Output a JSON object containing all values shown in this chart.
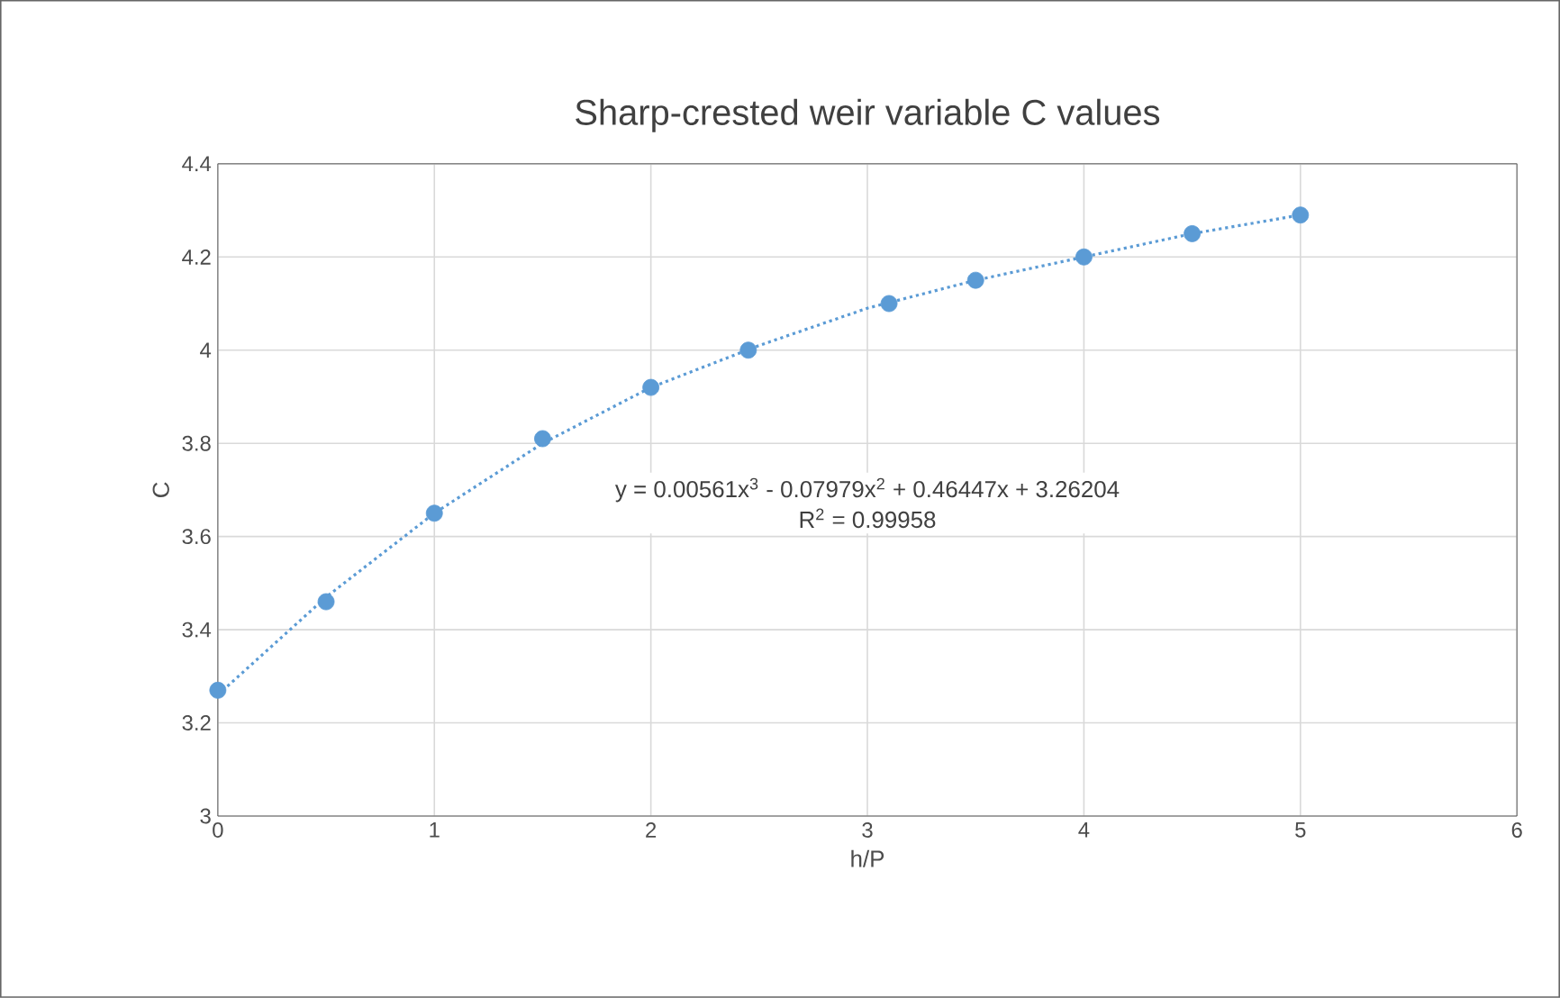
{
  "chart_data": {
    "type": "scatter",
    "title": "Sharp-crested weir variable C values",
    "xlabel": "h/P",
    "ylabel": "C",
    "xlim": [
      0,
      6
    ],
    "xticks": [
      0,
      1,
      2,
      3,
      4,
      5,
      6
    ],
    "ylim": [
      3,
      4.4
    ],
    "yticks": [
      3,
      3.2,
      3.4,
      3.6,
      3.8,
      4,
      4.2,
      4.4
    ],
    "grid": true,
    "marker": "circle",
    "x": [
      0,
      0.5,
      1,
      1.5,
      2,
      2.45,
      3.1,
      3.5,
      4,
      4.5,
      5
    ],
    "series": [
      {
        "color": "#5b9bd5",
        "values": [
          3.27,
          3.46,
          3.65,
          3.81,
          3.92,
          4.0,
          4.1,
          4.15,
          4.2,
          4.25,
          4.29
        ]
      },
      {
        "type": "line",
        "line_style": "dotted",
        "marker": "none",
        "color": "#5b9bd5",
        "x": [
          0,
          0.5,
          1,
          1.5,
          2,
          2.5,
          3,
          3.5,
          4,
          4.5,
          5
        ],
        "values": [
          3.26,
          3.47,
          3.65,
          3.8,
          3.92,
          4.01,
          4.09,
          4.15,
          4.2,
          4.25,
          4.29
        ]
      }
    ],
    "annotations": [
      "y = 0.00561x$^{3}$ - 0.07979x$^{2}$ + 0.46447x + 3.26204",
      "R$^{2}$ = 0.99958"
    ]
  }
}
